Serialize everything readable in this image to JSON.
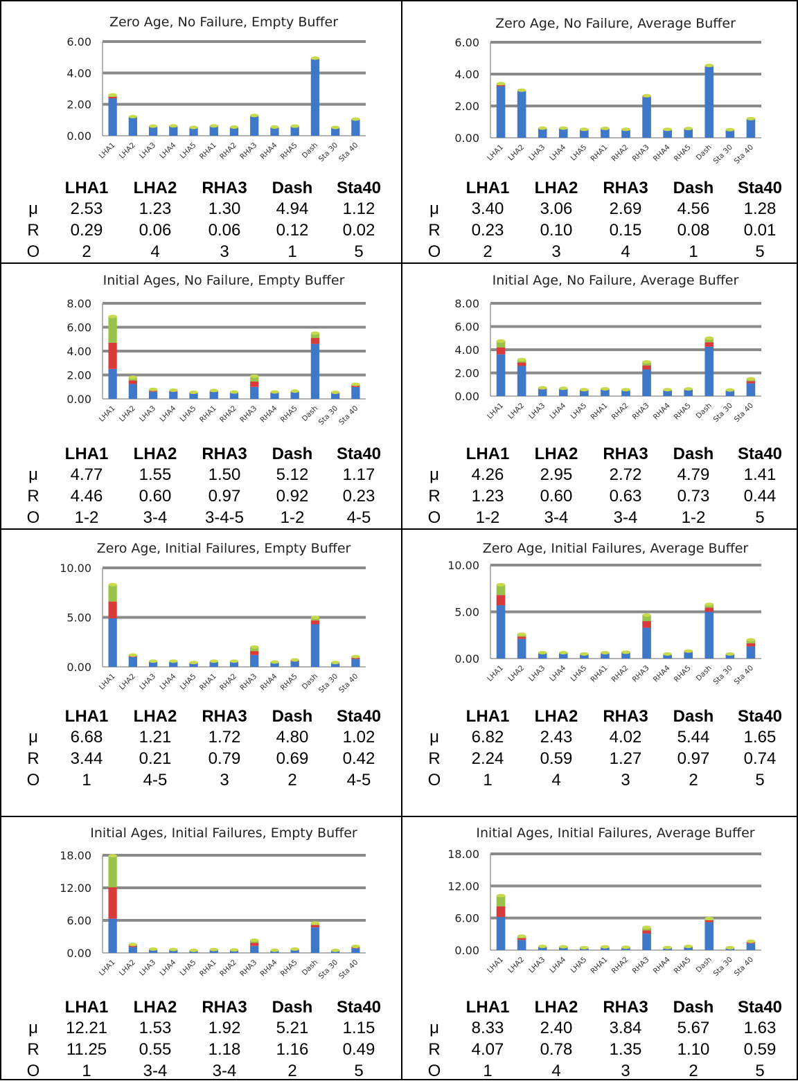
{
  "stats_row_labels": [
    "μ",
    "R",
    "O"
  ],
  "stats_columns": [
    "LHA1",
    "LHA2",
    "RHA3",
    "Dash",
    "Sta40"
  ],
  "series_colors": [
    "#3f78c9",
    "#d93b3b",
    "#97c34a"
  ],
  "chart_data": [
    {
      "type": "bar",
      "stacked": true,
      "title": "Zero Age, No Failure, Empty Buffer",
      "categories": [
        "LHA1",
        "LHA2",
        "LHA3",
        "LHA4",
        "LHA5",
        "RHA1",
        "RHA2",
        "RHA3",
        "RHA4",
        "RHA5",
        "Dash",
        "Sta 30",
        "Sta 40"
      ],
      "yticks": [
        "0.00",
        "2.00",
        "4.00",
        "6.00"
      ],
      "ylim": [
        0,
        6
      ],
      "series": [
        {
          "values": [
            2.38,
            1.17,
            0.58,
            0.6,
            0.5,
            0.6,
            0.52,
            1.24,
            0.52,
            0.58,
            4.86,
            0.5,
            1.03
          ]
        },
        {
          "values": [
            0.1,
            0.02,
            0.01,
            0.01,
            0.01,
            0.01,
            0.01,
            0.02,
            0.01,
            0.01,
            0.03,
            0.01,
            0.01
          ]
        },
        {
          "values": [
            0.12,
            0.03,
            0.02,
            0.02,
            0.02,
            0.02,
            0.02,
            0.03,
            0.02,
            0.02,
            0.05,
            0.02,
            0.02
          ]
        }
      ],
      "stats": {
        "mu": [
          "2.53",
          "1.23",
          "1.30",
          "4.94",
          "1.12"
        ],
        "R": [
          "0.29",
          "0.06",
          "0.06",
          "0.12",
          "0.02"
        ],
        "O": [
          "2",
          "4",
          "3",
          "1",
          "5"
        ]
      }
    },
    {
      "type": "bar",
      "stacked": true,
      "title": "Zero Age, No Failure, Average Buffer",
      "categories": [
        "LHA1",
        "LHA2",
        "LHA3",
        "LHA4",
        "LHA5",
        "RHA1",
        "RHA2",
        "RHA3",
        "RHA4",
        "RHA5",
        "Dash",
        "Sta 30",
        "Sta 40"
      ],
      "yticks": [
        "0.00",
        "2.00",
        "4.00",
        "6.00"
      ],
      "ylim": [
        0,
        6
      ],
      "series": [
        {
          "values": [
            3.24,
            2.92,
            0.58,
            0.58,
            0.5,
            0.56,
            0.5,
            2.55,
            0.5,
            0.55,
            4.46,
            0.48,
            1.17
          ]
        },
        {
          "values": [
            0.07,
            0.03,
            0.01,
            0.01,
            0.01,
            0.01,
            0.01,
            0.04,
            0.01,
            0.01,
            0.03,
            0.01,
            0.01
          ]
        },
        {
          "values": [
            0.09,
            0.04,
            0.02,
            0.02,
            0.02,
            0.02,
            0.02,
            0.05,
            0.02,
            0.02,
            0.05,
            0.02,
            0.02
          ]
        }
      ],
      "stats": {
        "mu": [
          "3.40",
          "3.06",
          "2.69",
          "4.56",
          "1.28"
        ],
        "R": [
          "0.23",
          "0.10",
          "0.15",
          "0.08",
          "0.01"
        ],
        "O": [
          "2",
          "3",
          "4",
          "1",
          "5"
        ]
      }
    },
    {
      "type": "bar",
      "stacked": true,
      "title": "Initial Ages, No Failure, Empty Buffer",
      "categories": [
        "LHA1",
        "LHA2",
        "LHA3",
        "LHA4",
        "LHA5",
        "RHA1",
        "RHA2",
        "RHA3",
        "RHA4",
        "RHA5",
        "Dash",
        "Sta 30",
        "Sta 40"
      ],
      "yticks": [
        "0.00",
        "2.00",
        "4.00",
        "6.00",
        "8.00"
      ],
      "ylim": [
        0,
        8
      ],
      "series": [
        {
          "values": [
            2.5,
            1.25,
            0.6,
            0.6,
            0.5,
            0.6,
            0.5,
            1.0,
            0.5,
            0.55,
            4.6,
            0.5,
            1.0
          ]
        },
        {
          "values": [
            2.2,
            0.3,
            0.08,
            0.05,
            0.02,
            0.04,
            0.03,
            0.45,
            0.03,
            0.04,
            0.5,
            0.02,
            0.12
          ]
        },
        {
          "values": [
            2.2,
            0.25,
            0.12,
            0.08,
            0.03,
            0.06,
            0.04,
            0.45,
            0.05,
            0.06,
            0.4,
            0.03,
            0.1
          ]
        }
      ],
      "stats": {
        "mu": [
          "4.77",
          "1.55",
          "1.50",
          "5.12",
          "1.17"
        ],
        "R": [
          "4.46",
          "0.60",
          "0.97",
          "0.92",
          "0.23"
        ],
        "O": [
          "1-2",
          "3-4",
          "3-4-5",
          "1-2",
          "4-5"
        ]
      }
    },
    {
      "type": "bar",
      "stacked": true,
      "title": "Initial Age, No Failure, Average Buffer",
      "categories": [
        "LHA1",
        "LHA2",
        "LHA3",
        "LHA4",
        "LHA5",
        "RHA1",
        "RHA2",
        "RHA3",
        "RHA4",
        "RHA5",
        "Dash",
        "Sta 30",
        "Sta 40"
      ],
      "yticks": [
        "0.00",
        "2.00",
        "4.00",
        "6.00",
        "8.00"
      ],
      "ylim": [
        0,
        8
      ],
      "series": [
        {
          "values": [
            3.6,
            2.6,
            0.58,
            0.58,
            0.5,
            0.56,
            0.5,
            2.3,
            0.5,
            0.55,
            4.25,
            0.48,
            1.1
          ]
        },
        {
          "values": [
            0.6,
            0.3,
            0.06,
            0.04,
            0.02,
            0.03,
            0.02,
            0.35,
            0.02,
            0.03,
            0.4,
            0.02,
            0.2
          ]
        },
        {
          "values": [
            0.55,
            0.25,
            0.08,
            0.05,
            0.03,
            0.04,
            0.03,
            0.3,
            0.03,
            0.04,
            0.35,
            0.03,
            0.2
          ]
        }
      ],
      "stats": {
        "mu": [
          "4.26",
          "2.95",
          "2.72",
          "4.79",
          "1.41"
        ],
        "R": [
          "1.23",
          "0.60",
          "0.63",
          "0.73",
          "0.44"
        ],
        "O": [
          "1-2",
          "3-4",
          "3-4",
          "1-2",
          "5"
        ]
      }
    },
    {
      "type": "bar",
      "stacked": true,
      "title": "Zero Age, Initial Failures, Empty Buffer",
      "categories": [
        "LHA1",
        "LHA2",
        "LHA3",
        "LHA4",
        "LHA5",
        "RHA1",
        "RHA2",
        "RHA3",
        "RHA4",
        "RHA5",
        "Dash",
        "Sta 30",
        "Sta 40"
      ],
      "yticks": [
        "0.00",
        "5.00",
        "10.00"
      ],
      "ylim": [
        0,
        10
      ],
      "series": [
        {
          "values": [
            4.9,
            1.0,
            0.5,
            0.5,
            0.4,
            0.5,
            0.5,
            1.2,
            0.45,
            0.55,
            4.3,
            0.4,
            0.8
          ]
        },
        {
          "values": [
            1.7,
            0.1,
            0.04,
            0.04,
            0.02,
            0.04,
            0.04,
            0.4,
            0.02,
            0.08,
            0.4,
            0.02,
            0.12
          ]
        },
        {
          "values": [
            1.7,
            0.1,
            0.04,
            0.04,
            0.02,
            0.04,
            0.04,
            0.4,
            0.02,
            0.08,
            0.3,
            0.02,
            0.12
          ]
        }
      ],
      "stats": {
        "mu": [
          "6.68",
          "1.21",
          "1.72",
          "4.80",
          "1.02"
        ],
        "R": [
          "3.44",
          "0.21",
          "0.79",
          "0.69",
          "0.42"
        ],
        "O": [
          "1",
          "4-5",
          "3",
          "2",
          "4-5"
        ]
      }
    },
    {
      "type": "bar",
      "stacked": true,
      "title": "Zero Age, Initial Failures, Average Buffer",
      "categories": [
        "LHA1",
        "LHA2",
        "LHA3",
        "LHA4",
        "LHA5",
        "RHA1",
        "RHA2",
        "RHA3",
        "RHA4",
        "RHA5",
        "Dash",
        "Sta 30",
        "Sta 40"
      ],
      "yticks": [
        "0.00",
        "5.00",
        "10.00"
      ],
      "ylim": [
        0,
        10
      ],
      "series": [
        {
          "values": [
            5.7,
            2.1,
            0.55,
            0.55,
            0.45,
            0.55,
            0.6,
            3.3,
            0.45,
            0.65,
            5.0,
            0.45,
            1.3
          ]
        },
        {
          "values": [
            1.1,
            0.25,
            0.04,
            0.04,
            0.02,
            0.04,
            0.04,
            0.7,
            0.02,
            0.08,
            0.45,
            0.02,
            0.35
          ]
        },
        {
          "values": [
            1.1,
            0.25,
            0.04,
            0.04,
            0.02,
            0.04,
            0.04,
            0.65,
            0.02,
            0.08,
            0.35,
            0.02,
            0.35
          ]
        }
      ],
      "stats": {
        "mu": [
          "6.82",
          "2.43",
          "4.02",
          "5.44",
          "1.65"
        ],
        "R": [
          "2.24",
          "0.59",
          "1.27",
          "0.97",
          "0.74"
        ],
        "O": [
          "1",
          "4",
          "3",
          "2",
          "5"
        ]
      }
    },
    {
      "type": "bar",
      "stacked": true,
      "title": "Initial Ages, Initial Failures, Empty Buffer",
      "categories": [
        "LHA1",
        "LHA2",
        "LHA3",
        "LHA4",
        "LHA5",
        "RHA1",
        "RHA2",
        "RHA3",
        "RHA4",
        "RHA5",
        "Dash",
        "Sta 30",
        "Sta 40"
      ],
      "yticks": [
        "0.00",
        "6.00",
        "12.00",
        "18.00"
      ],
      "ylim": [
        0,
        18
      ],
      "series": [
        {
          "values": [
            6.3,
            1.1,
            0.55,
            0.5,
            0.4,
            0.5,
            0.45,
            1.3,
            0.4,
            0.55,
            4.7,
            0.4,
            0.85
          ]
        },
        {
          "values": [
            5.8,
            0.25,
            0.08,
            0.07,
            0.03,
            0.06,
            0.05,
            0.55,
            0.04,
            0.08,
            0.45,
            0.03,
            0.18
          ]
        },
        {
          "values": [
            5.8,
            0.2,
            0.07,
            0.06,
            0.03,
            0.05,
            0.04,
            0.5,
            0.04,
            0.07,
            0.35,
            0.03,
            0.17
          ]
        }
      ],
      "stats": {
        "mu": [
          "12.21",
          "1.53",
          "1.92",
          "5.21",
          "1.15"
        ],
        "R": [
          "11.25",
          "0.55",
          "1.18",
          "1.16",
          "0.49"
        ],
        "O": [
          "1",
          "3-4",
          "3-4",
          "2",
          "5"
        ]
      }
    },
    {
      "type": "bar",
      "stacked": true,
      "title": "Initial Ages, Initial Failures, Average Buffer",
      "categories": [
        "LHA1",
        "LHA2",
        "LHA3",
        "LHA4",
        "LHA5",
        "RHA1",
        "RHA2",
        "RHA3",
        "RHA4",
        "RHA5",
        "Dash",
        "Sta 30",
        "Sta 40"
      ],
      "yticks": [
        "0.00",
        "6.00",
        "12.00",
        "18.00"
      ],
      "ylim": [
        0,
        18
      ],
      "series": [
        {
          "values": [
            6.2,
            1.9,
            0.55,
            0.5,
            0.4,
            0.5,
            0.45,
            3.1,
            0.4,
            0.55,
            5.2,
            0.4,
            1.25
          ]
        },
        {
          "values": [
            2.0,
            0.35,
            0.08,
            0.07,
            0.03,
            0.06,
            0.05,
            0.6,
            0.04,
            0.08,
            0.4,
            0.03,
            0.2
          ]
        },
        {
          "values": [
            2.0,
            0.35,
            0.07,
            0.06,
            0.03,
            0.05,
            0.04,
            0.55,
            0.04,
            0.07,
            0.3,
            0.03,
            0.2
          ]
        }
      ],
      "stats": {
        "mu": [
          "8.33",
          "2.40",
          "3.84",
          "5.67",
          "1.63"
        ],
        "R": [
          "4.07",
          "0.78",
          "1.35",
          "1.10",
          "0.59"
        ],
        "O": [
          "1",
          "4",
          "3",
          "2",
          "5"
        ]
      }
    }
  ]
}
